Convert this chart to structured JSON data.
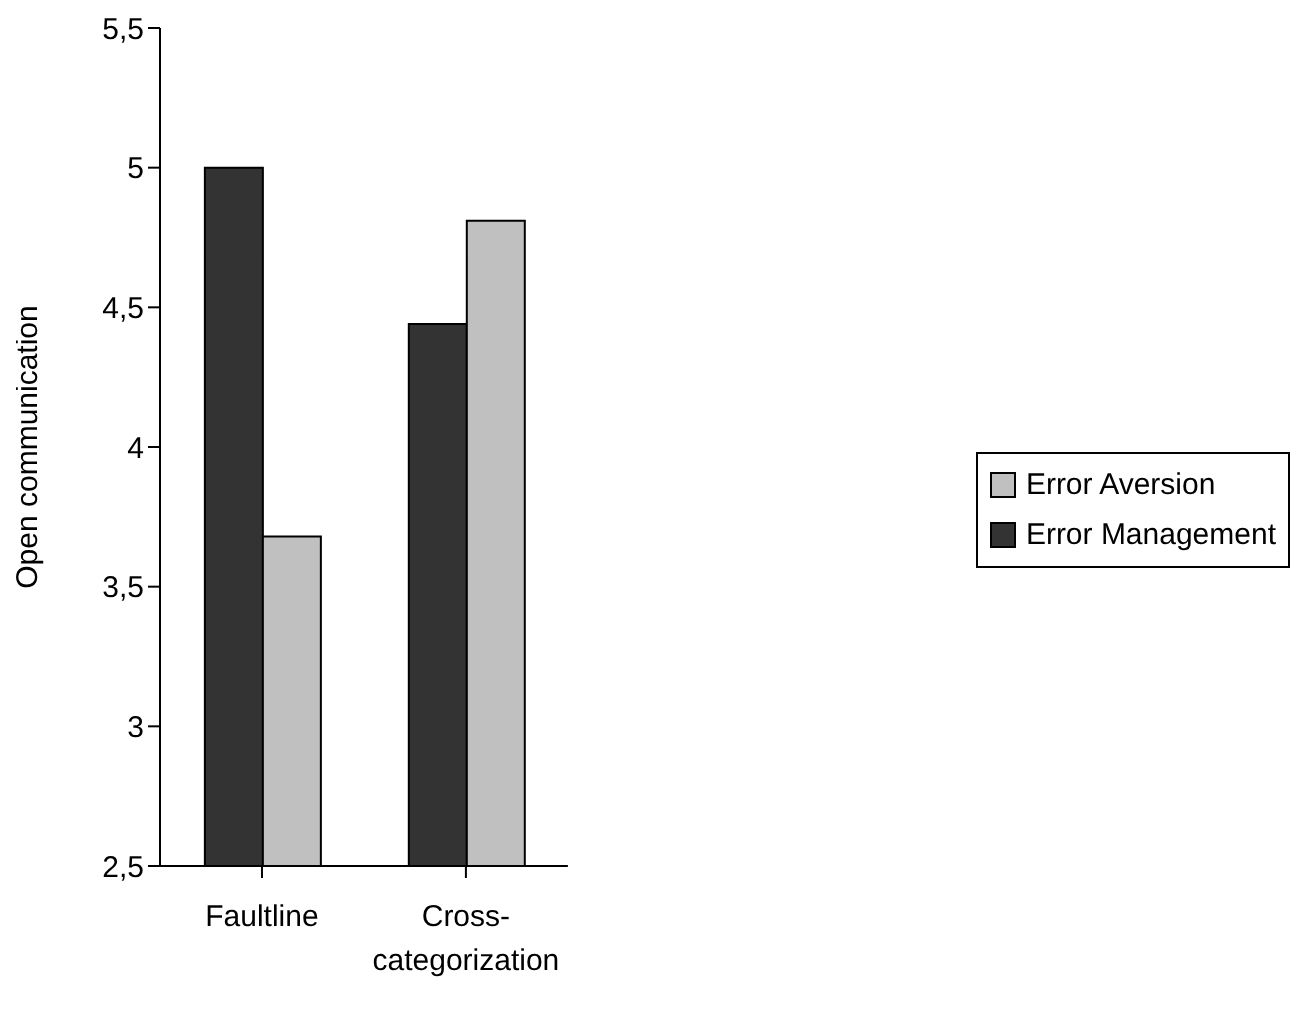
{
  "chart_data": {
    "type": "bar",
    "ylabel": "Open communication",
    "categories": [
      "Faultline",
      "Cross-categorization"
    ],
    "series": [
      {
        "name": "Error Management",
        "color": "#333333",
        "values": [
          5.0,
          4.44
        ]
      },
      {
        "name": "Error Aversion",
        "color": "#c0c0c0",
        "values": [
          3.68,
          4.81
        ]
      }
    ],
    "ylim": [
      2.5,
      5.5
    ],
    "yticks": [
      {
        "value": 2.5,
        "label": "2,5"
      },
      3,
      {
        "value": 3.5,
        "label": "3,5"
      },
      4,
      {
        "value": 4.5,
        "label": "4,5"
      },
      5,
      {
        "value": 5.5,
        "label": "5,5"
      }
    ],
    "grid": false,
    "legend": "right"
  }
}
